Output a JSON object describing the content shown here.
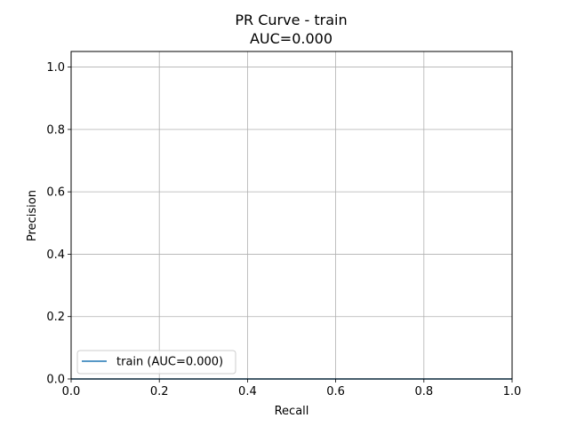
{
  "chart_data": {
    "type": "line",
    "title": "PR Curve - train",
    "subtitle": "AUC=0.000",
    "xlabel": "Recall",
    "ylabel": "Precision",
    "xlim": [
      0.0,
      1.0
    ],
    "ylim": [
      0.0,
      1.05
    ],
    "x_ticks": [
      0.0,
      0.2,
      0.4,
      0.6,
      0.8,
      1.0
    ],
    "x_tick_labels": [
      "0.0",
      "0.2",
      "0.4",
      "0.6",
      "0.8",
      "1.0"
    ],
    "y_ticks": [
      0.0,
      0.2,
      0.4,
      0.6,
      0.8,
      1.0
    ],
    "y_tick_labels": [
      "0.0",
      "0.2",
      "0.4",
      "0.6",
      "0.8",
      "1.0"
    ],
    "grid": true,
    "legend_position": "lower-left",
    "series": [
      {
        "name": "train (AUC=0.000)",
        "color": "#1f77b4",
        "x": [
          0.0,
          1.0
        ],
        "y": [
          0.0,
          0.0
        ]
      }
    ]
  },
  "colors": {
    "grid": "#b0b0b0",
    "axes": "#000000",
    "background": "#ffffff",
    "legend_border": "#cccccc"
  }
}
